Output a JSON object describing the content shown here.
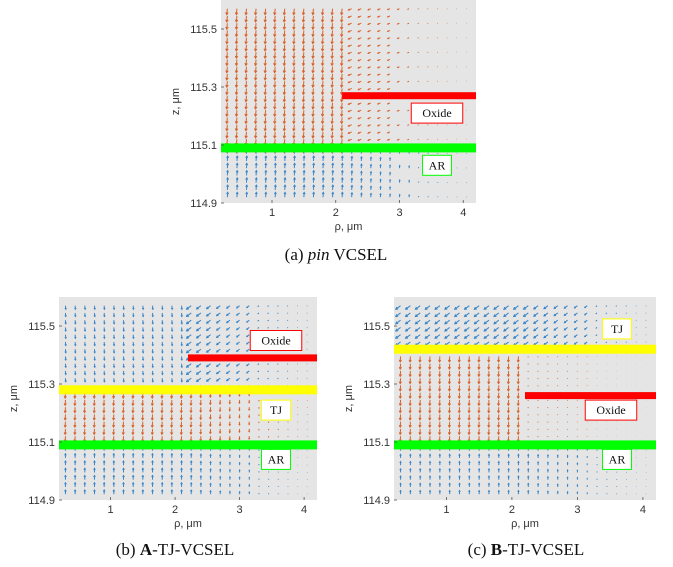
{
  "figure": {
    "colors": {
      "plot_bg": "#e5e5e5",
      "current_electron": "#3a86c8",
      "current_hole": "#d9622b",
      "oxide": "#ff0000",
      "active_region": "#00ff00",
      "tunnel_junction": "#ffff00"
    },
    "panels": [
      {
        "caption_label": "(a)",
        "caption_prefix_italic": "pin",
        "caption_bold": "",
        "caption_suffix": " VCSEL",
        "xlabel": "ρ, μm",
        "ylabel": "z, μm",
        "xticks": [
          "1",
          "2",
          "3",
          "4"
        ],
        "yticks": [
          "115.5",
          "115.3",
          "115.1",
          "114.9"
        ],
        "xlim": [
          0.2,
          4.2
        ],
        "ylim": [
          114.9,
          115.6
        ],
        "oxide": {
          "rho_start": 2.1,
          "z": 115.27,
          "label": "Oxide"
        },
        "active_region": {
          "z": 115.09,
          "label": "AR"
        },
        "tunnel_junction": null
      },
      {
        "caption_label": "(b)",
        "caption_prefix_italic": "",
        "caption_bold": "A",
        "caption_suffix": "-TJ-VCSEL",
        "xlabel": "ρ, μm",
        "ylabel": "z, μm",
        "xticks": [
          "1",
          "2",
          "3",
          "4"
        ],
        "yticks": [
          "115.5",
          "115.3",
          "115.1",
          "114.9"
        ],
        "xlim": [
          0.2,
          4.2
        ],
        "ylim": [
          114.9,
          115.6
        ],
        "oxide": {
          "rho_start": 2.2,
          "z": 115.39,
          "label": "Oxide"
        },
        "active_region": {
          "z": 115.09,
          "label": "AR"
        },
        "tunnel_junction": {
          "z": 115.28,
          "label": "TJ"
        }
      },
      {
        "caption_label": "(c)",
        "caption_prefix_italic": "",
        "caption_bold": "B",
        "caption_suffix": "-TJ-VCSEL",
        "xlabel": "ρ, μm",
        "ylabel": "z, μm",
        "xticks": [
          "1",
          "2",
          "3",
          "4"
        ],
        "yticks": [
          "115.5",
          "115.3",
          "115.1",
          "114.9"
        ],
        "xlim": [
          0.2,
          4.2
        ],
        "ylim": [
          114.9,
          115.6
        ],
        "oxide": {
          "rho_start": 2.2,
          "z": 115.26,
          "label": "Oxide"
        },
        "active_region": {
          "z": 115.09,
          "label": "AR"
        },
        "tunnel_junction": {
          "z": 115.42,
          "label": "TJ"
        }
      }
    ]
  }
}
